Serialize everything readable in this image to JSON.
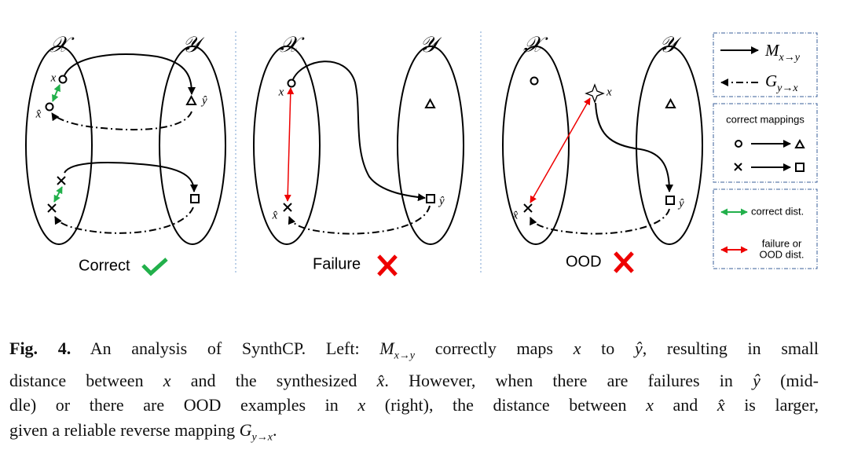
{
  "panels": [
    {
      "domain_x": "𝒳",
      "domain_y": "𝒴",
      "label": "Correct",
      "point_x": "x",
      "point_x_hat": "x̂",
      "point_y_hat": "ŷ"
    },
    {
      "domain_x": "𝒳",
      "domain_y": "𝒴",
      "label": "Failure",
      "point_x": "x",
      "point_x_hat": "x̂",
      "point_y_hat": "ŷ"
    },
    {
      "domain_x": "𝒳",
      "domain_y": "𝒴",
      "label": "OOD",
      "point_x": "x",
      "point_x_hat": "x̂",
      "point_y_hat": "ŷ"
    }
  ],
  "legend": {
    "forward": {
      "symbol": "M",
      "sub": "x→y"
    },
    "reverse": {
      "symbol": "G",
      "sub": "y→x"
    },
    "correct_mappings": "correct mappings",
    "correct_dist": "correct dist.",
    "failure_dist": [
      "failure or",
      "OOD dist."
    ]
  },
  "caption": {
    "lines": [
      [
        {
          "text": "Fig. 4.",
          "bold": true
        },
        {
          "text": " An analysis of SynthCP. Left: "
        },
        {
          "text": "M",
          "sub": "x→y",
          "math": true
        },
        {
          "text": " correctly maps "
        },
        {
          "text": "x",
          "math": true
        },
        {
          "text": " to "
        },
        {
          "text": "ŷ",
          "math": true
        },
        {
          "text": ", resulting in small"
        }
      ],
      [
        {
          "text": "distance between "
        },
        {
          "text": "x",
          "math": true
        },
        {
          "text": " and the synthesized "
        },
        {
          "text": "x̂",
          "math": true
        },
        {
          "text": ". However, when there are failures in "
        },
        {
          "text": "ŷ",
          "math": true
        },
        {
          "text": " (mid-"
        }
      ],
      [
        {
          "text": "dle) or there are OOD examples in "
        },
        {
          "text": "x",
          "math": true
        },
        {
          "text": " (right), the distance between "
        },
        {
          "text": "x",
          "math": true
        },
        {
          "text": " and "
        },
        {
          "text": "x̂",
          "math": true
        },
        {
          "text": " is larger,"
        }
      ],
      [
        {
          "text": "given a reliable reverse mapping "
        },
        {
          "text": "G",
          "sub": "y→x",
          "math": true
        },
        {
          "text": "."
        }
      ]
    ]
  }
}
